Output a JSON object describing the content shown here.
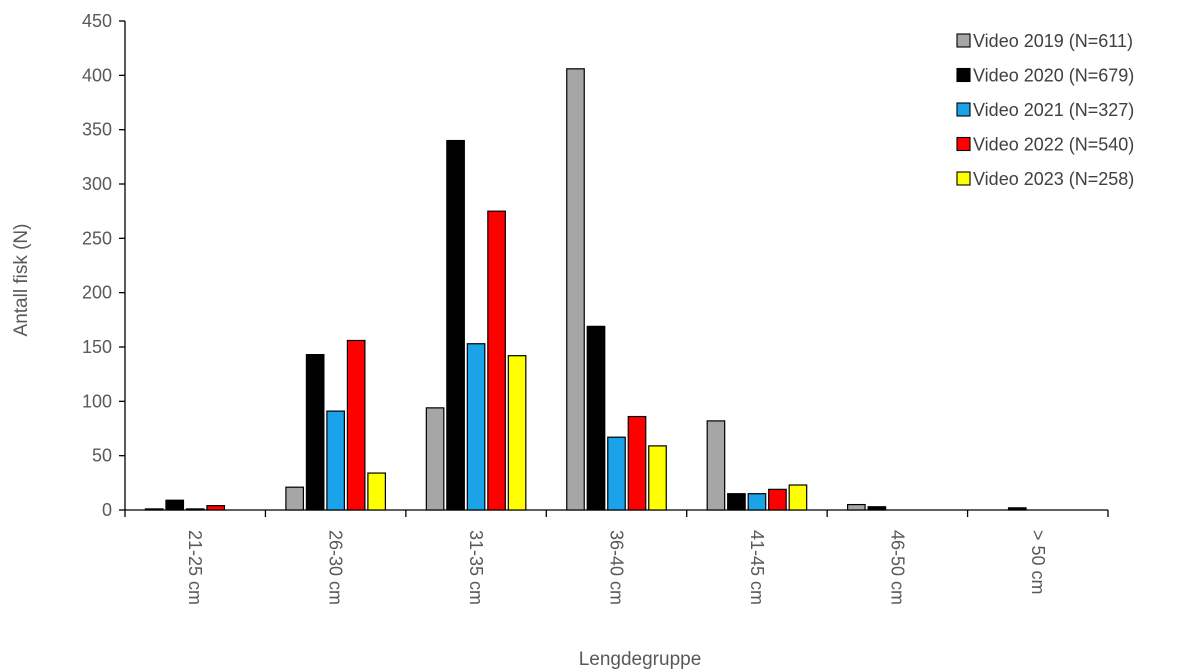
{
  "chart_data": {
    "type": "bar",
    "title": "",
    "xlabel": "Lengdegruppe",
    "ylabel": "Antall fisk (N)",
    "ylim": [
      0,
      450
    ],
    "yticks": [
      0,
      50,
      100,
      150,
      200,
      250,
      300,
      350,
      400,
      450
    ],
    "categories": [
      "21-25 cm",
      "26-30 cm",
      "31-35 cm",
      "36-40 cm",
      "41-45 cm",
      "46-50 cm",
      "> 50 cm"
    ],
    "grid": false,
    "legend_position": "top-right",
    "series": [
      {
        "name": "Video 2019 (N=611)",
        "color": "#a6a6a6",
        "values": [
          1,
          21,
          94,
          406,
          82,
          5,
          0
        ]
      },
      {
        "name": "Video 2020 (N=679)",
        "color": "#000000",
        "values": [
          9,
          143,
          340,
          169,
          15,
          3,
          2
        ]
      },
      {
        "name": "Video 2021 (N=327)",
        "color": "#1aa3e8",
        "values": [
          1,
          91,
          153,
          67,
          15,
          0,
          0
        ]
      },
      {
        "name": "Video 2022 (N=540)",
        "color": "#ff0000",
        "values": [
          4,
          156,
          275,
          86,
          19,
          0,
          0
        ]
      },
      {
        "name": "Video 2023 (N=258)",
        "color": "#ffff00",
        "values": [
          0,
          34,
          142,
          59,
          23,
          0,
          0
        ]
      }
    ]
  }
}
